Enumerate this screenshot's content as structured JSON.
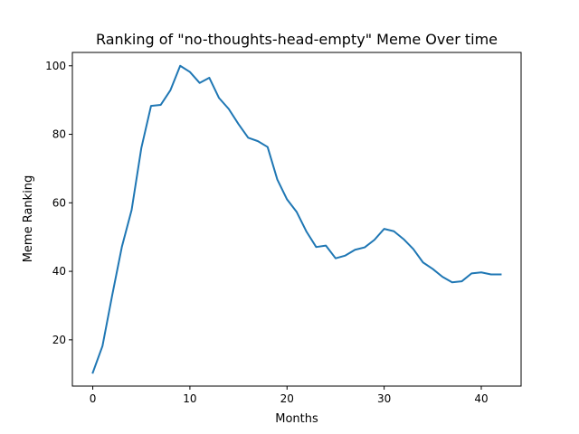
{
  "chart_data": {
    "type": "line",
    "title": "Ranking of \"no-thoughts-head-empty\" Meme Over time",
    "xlabel": "Months",
    "ylabel": "Meme Ranking",
    "xlim": [
      -2.1,
      44.1
    ],
    "ylim": [
      6.5,
      103.9
    ],
    "xticks": [
      0,
      10,
      20,
      30,
      40
    ],
    "yticks": [
      20,
      40,
      60,
      80,
      100
    ],
    "grid": false,
    "legend": "none",
    "series_color": "#1f77b4",
    "series": [
      {
        "x": [
          0,
          1,
          2,
          3,
          4,
          5,
          6,
          7,
          8,
          9,
          10,
          11,
          12,
          13,
          14,
          15,
          16,
          17,
          18,
          19,
          20,
          21,
          22,
          23,
          24,
          25,
          26,
          27,
          28,
          29,
          30,
          31,
          32,
          33,
          34,
          35,
          36,
          37,
          38,
          39,
          40,
          41,
          42
        ],
        "values": [
          10.4,
          18.2,
          33,
          47.2,
          57.9,
          76,
          88.3,
          88.6,
          92.9,
          100,
          98.2,
          95,
          96.5,
          90.6,
          87.4,
          83,
          79,
          78,
          76.3,
          66.8,
          61,
          57.3,
          51.6,
          47.1,
          47.5,
          43.8,
          44.6,
          46.3,
          47,
          49.2,
          52.4,
          51.7,
          49.4,
          46.5,
          42.6,
          40.7,
          38.4,
          36.8,
          37.1,
          39.4,
          39.7,
          39.1,
          39.1
        ]
      }
    ]
  }
}
